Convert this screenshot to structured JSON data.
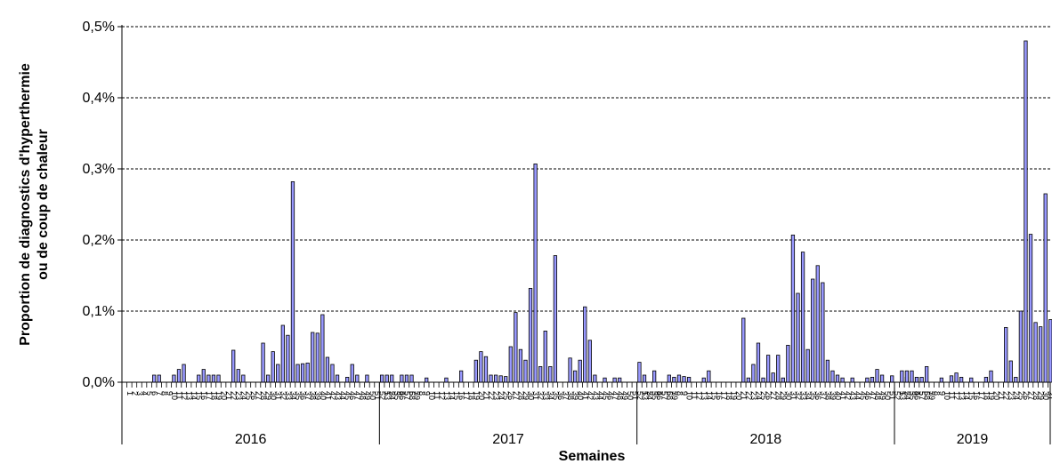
{
  "chart_data": {
    "type": "bar",
    "title": "",
    "xlabel": "Semaines",
    "ylabel_line1": "Proportion de diagnostics d'hyperthermie",
    "ylabel_line2": "ou de coup de chaleur",
    "ylim": [
      0,
      0.5
    ],
    "y_ticks": [
      "0,0%",
      "0,1%",
      "0,2%",
      "0,3%",
      "0,4%",
      "0,5%"
    ],
    "grid": true,
    "legend": "none",
    "colors": {
      "bar_fill": "#9999ff",
      "bar_stroke": "#000000",
      "grid": "#000000"
    },
    "years": [
      {
        "label": "2016",
        "values": [
          0,
          0,
          0,
          0,
          0,
          0,
          0.01,
          0.01,
          0,
          0,
          0.01,
          0.018,
          0.025,
          0,
          0,
          0.01,
          0.018,
          0.01,
          0.01,
          0.01,
          0,
          0,
          0.045,
          0.018,
          0.01,
          0,
          0,
          0,
          0.055,
          0.01,
          0.043,
          0.025,
          0.08,
          0.066,
          0.282,
          0.025,
          0.026,
          0.027,
          0.07,
          0.069,
          0.095,
          0.035,
          0.025,
          0.01,
          0,
          0.007,
          0.025,
          0.01,
          0,
          0.01,
          0,
          0,
          0.01,
          0.01,
          0.01,
          0,
          0,
          0,
          0
        ]
      },
      {
        "label": "2017",
        "values": [
          0,
          0,
          0,
          0,
          0.01,
          0.01,
          0.01,
          0,
          0,
          0.006,
          0,
          0,
          0,
          0.006,
          0,
          0,
          0.016,
          0,
          0,
          0.031,
          0.043,
          0.036,
          0.01,
          0.01,
          0.009,
          0.008,
          0.05,
          0.098,
          0.046,
          0.031,
          0.132,
          0.307,
          0.022,
          0.072,
          0.022,
          0.178,
          0,
          0,
          0.034,
          0.016,
          0.031,
          0.106,
          0.059,
          0.01,
          0,
          0.006,
          0,
          0.006,
          0.006,
          0,
          0,
          0,
          0.028,
          0.01,
          0,
          0,
          0,
          0,
          0
        ]
      },
      {
        "label": "2018",
        "values": [
          0,
          0,
          0,
          0.016,
          0,
          0,
          0.01,
          0.007,
          0.01,
          0.008,
          0.007,
          0,
          0,
          0.006,
          0.016,
          0,
          0,
          0,
          0,
          0,
          0,
          0.09,
          0.006,
          0.025,
          0.055,
          0.006,
          0.038,
          0.013,
          0.038,
          0.006,
          0.052,
          0.207,
          0.125,
          0.183,
          0.046,
          0.145,
          0.164,
          0.14,
          0.031,
          0.016,
          0.01,
          0.006,
          0,
          0.006,
          0,
          0,
          0.006,
          0.007,
          0.018,
          0.01,
          0,
          0.009,
          0,
          0,
          0.007,
          0,
          0.007,
          0,
          0
        ]
      },
      {
        "label": "2019",
        "values": [
          0,
          0.016,
          0.016,
          0.016,
          0.007,
          0.007,
          0.022,
          0,
          0,
          0.006,
          0,
          0.009,
          0.013,
          0.007,
          0,
          0.006,
          0,
          0,
          0.007,
          0.016,
          0,
          0,
          0.077,
          0.03,
          0.007,
          0.1,
          0.48,
          0.208,
          0.084,
          0.078,
          0.265,
          0.088
        ]
      }
    ]
  }
}
